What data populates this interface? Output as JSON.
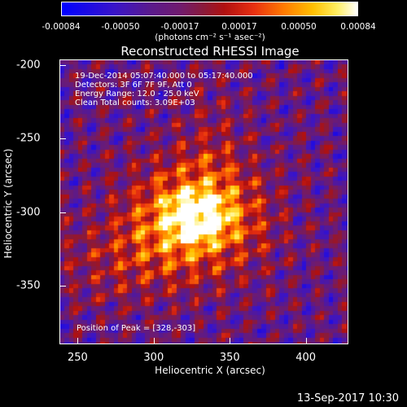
{
  "colorbar": {
    "ticks": [
      "-0.00084",
      "-0.00050",
      "-0.00017",
      "0.00017",
      "0.00050",
      "0.00084"
    ],
    "unit": "(photons cm⁻² s⁻¹ asec⁻²)",
    "colors": [
      "#0000ff",
      "#5a1a8c",
      "#8a1a3a",
      "#e83010",
      "#ffc000",
      "#ffffff"
    ]
  },
  "title": "Reconstructed RHESSI Image",
  "annotations": {
    "time_range": "19-Dec-2014 05:07:40.000 to 05:17:40.000",
    "detectors": "Detectors: 3F 6F 7F 9F, Att 0",
    "energy": "Energy Range: 12.0 - 25.0 keV",
    "clean": "Clean    Total counts: 3.09E+03",
    "peak": "Position of Peak = [328,-303]"
  },
  "axes": {
    "xlabel": "Heliocentric X (arcsec)",
    "ylabel": "Heliocentric Y (arcsec)",
    "xticks": [
      "250",
      "300",
      "350",
      "400"
    ],
    "yticks": [
      "-200",
      "-250",
      "-300",
      "-350"
    ]
  },
  "datestamp": "13-Sep-2017 10:30",
  "chart_data": {
    "type": "heatmap",
    "title": "Reconstructed RHESSI Image",
    "xlabel": "Heliocentric X (arcsec)",
    "ylabel": "Heliocentric Y (arcsec)",
    "xlim": [
      238,
      428
    ],
    "ylim": [
      -390,
      -196
    ],
    "xticks": [
      250,
      300,
      350,
      400
    ],
    "yticks": [
      -200,
      -250,
      -300,
      -350
    ],
    "colorbar_range": [
      -0.00084,
      0.00084
    ],
    "colorbar_ticks": [
      -0.00084,
      -0.0005,
      -0.00017,
      0.00017,
      0.0005,
      0.00084
    ],
    "colorbar_unit": "(photons cm⁻² s⁻¹ asec⁻²)",
    "peak": [
      328,
      -303
    ],
    "total_counts": 3090,
    "energy_range_kev": [
      12.0,
      25.0
    ],
    "time_range": "19-Dec-2014 05:07:40.000 to 05:17:40.000",
    "detectors": "3F 6F 7F 9F",
    "attenuator": 0
  }
}
